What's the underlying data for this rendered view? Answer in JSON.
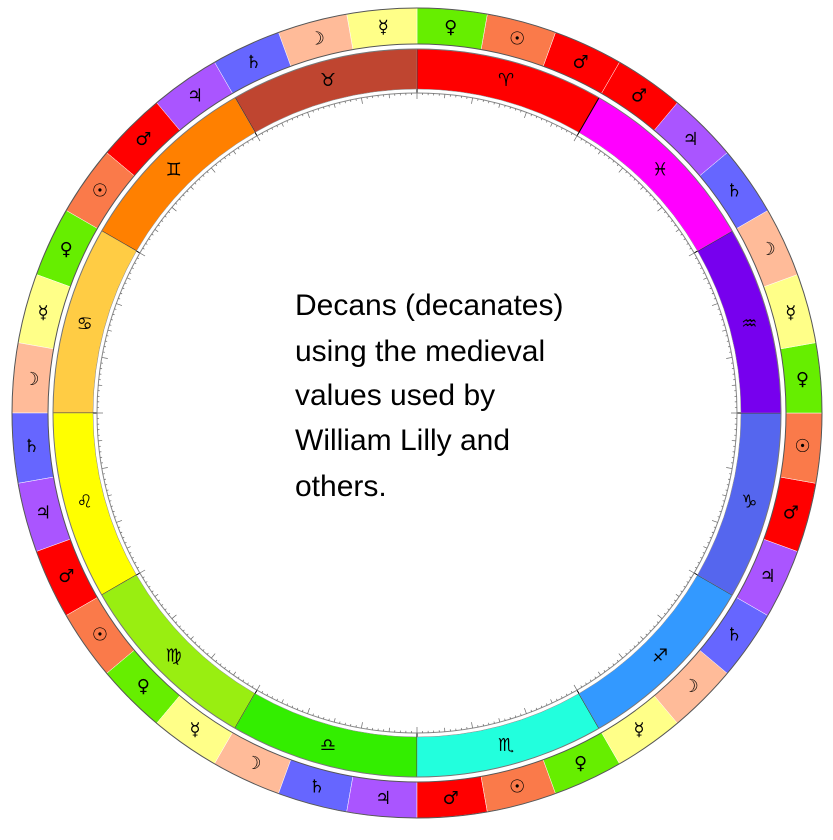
{
  "wheel": {
    "signs": [
      {
        "glyph": "♈",
        "color": "#ff0000"
      },
      {
        "glyph": "♉",
        "color": "#bf4530"
      },
      {
        "glyph": "♊",
        "color": "#ff8000"
      },
      {
        "glyph": "♋",
        "color": "#ffcc44"
      },
      {
        "glyph": "♌",
        "color": "#ffff00"
      },
      {
        "glyph": "♍",
        "color": "#99ee11"
      },
      {
        "glyph": "♎",
        "color": "#33ee00"
      },
      {
        "glyph": "♏",
        "color": "#22ffdd"
      },
      {
        "glyph": "♐",
        "color": "#3399ff"
      },
      {
        "glyph": "♑",
        "color": "#5566ee"
      },
      {
        "glyph": "♒",
        "color": "#7700ee"
      },
      {
        "glyph": "♓",
        "color": "#ff00ff"
      }
    ],
    "decan_cycle": [
      {
        "glyph": "♂",
        "color": "#ff0000"
      },
      {
        "glyph": "☉",
        "color": "#fa7a4a"
      },
      {
        "glyph": "♀",
        "color": "#66ee00"
      },
      {
        "glyph": "☿",
        "color": "#ffff88"
      },
      {
        "glyph": "☽",
        "color": "#ffbb99"
      },
      {
        "glyph": "♄",
        "color": "#6666ff"
      },
      {
        "glyph": "♃",
        "color": "#aa55ff"
      }
    ]
  },
  "note": {
    "lines": [
      "Decans (decanates)",
      "using the medieval",
      "values used by",
      "William Lilly and",
      "others."
    ]
  }
}
